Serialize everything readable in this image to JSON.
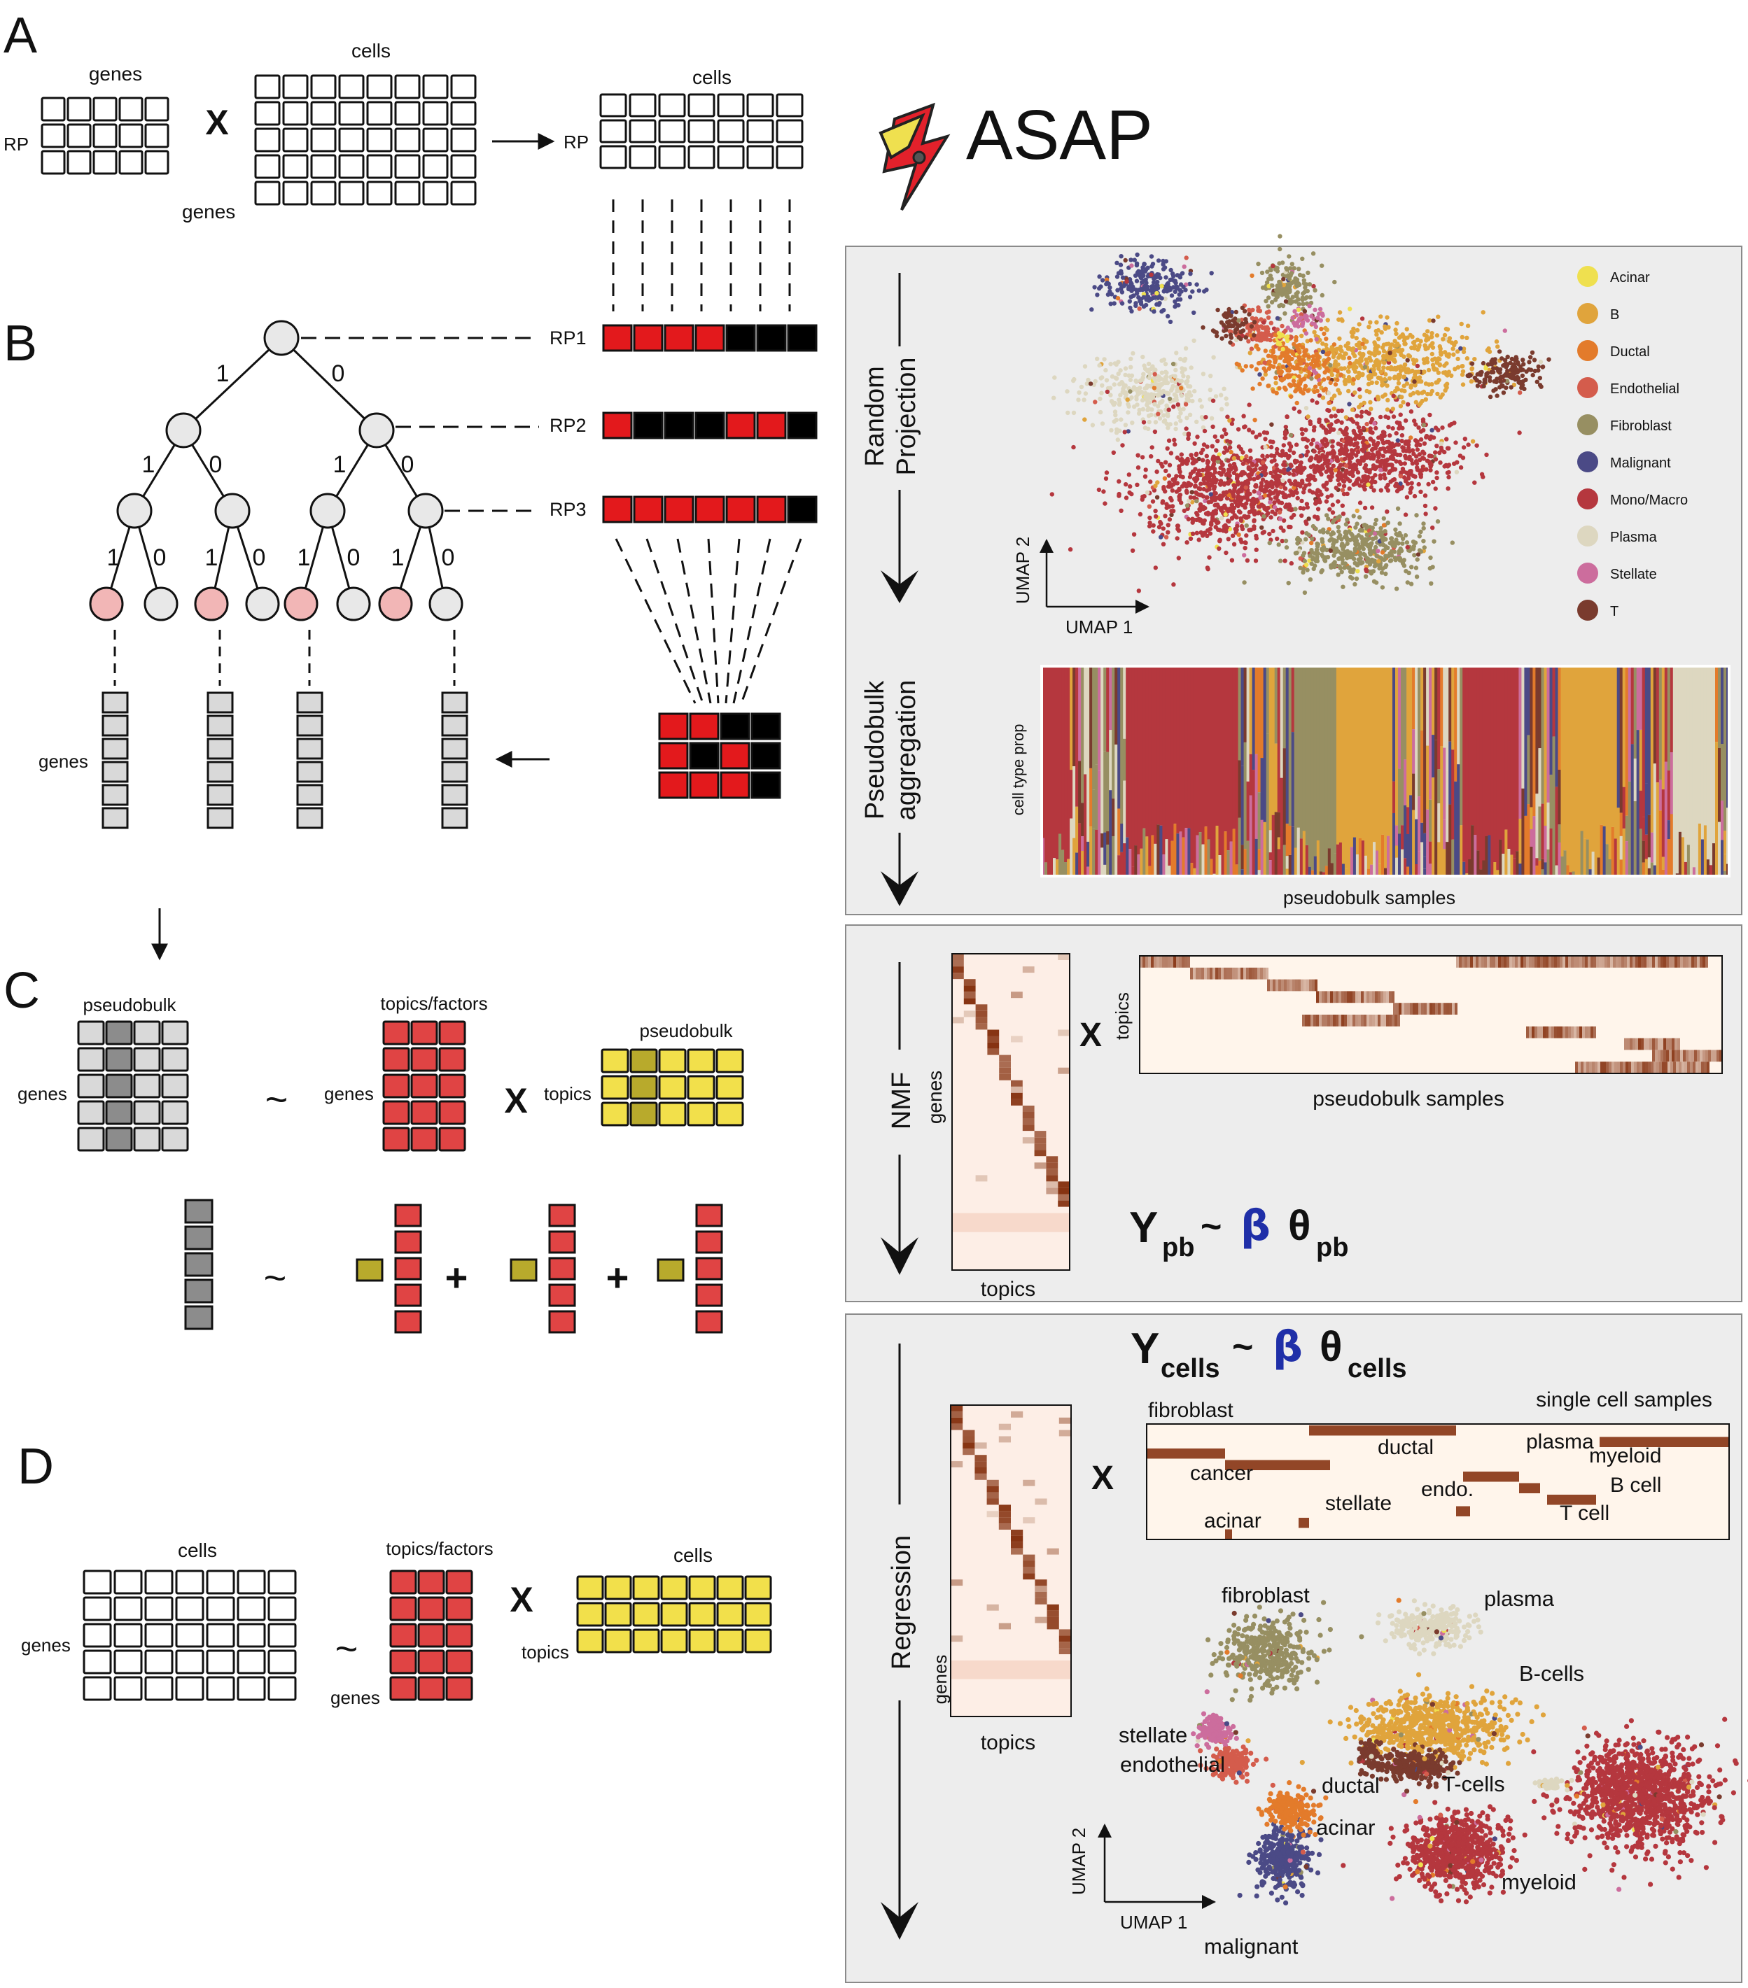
{
  "brand": {
    "name": "ASAP"
  },
  "panel_letters": [
    "A",
    "B",
    "C",
    "D"
  ],
  "panel_a": {
    "genes_top": "genes",
    "rp_left": "RP",
    "times": "X",
    "cells_top": "cells",
    "genes_bottom": "genes",
    "cells_result": "cells",
    "rp_result": "RP"
  },
  "panel_b": {
    "rp_labels": [
      "RP1",
      "RP2",
      "RP3"
    ],
    "branch_labels": [
      "1",
      "0"
    ],
    "genes_label": "genes",
    "rp_patterns": [
      [
        "red",
        "red",
        "red",
        "red",
        "black",
        "black",
        "black"
      ],
      [
        "red",
        "black",
        "black",
        "black",
        "red",
        "red",
        "black"
      ],
      [
        "red",
        "red",
        "red",
        "red",
        "red",
        "red",
        "black"
      ]
    ],
    "small_grid": [
      [
        "red",
        "red",
        "black",
        "black"
      ],
      [
        "red",
        "black",
        "red",
        "black"
      ],
      [
        "red",
        "red",
        "red",
        "black"
      ]
    ]
  },
  "panel_c": {
    "pseudobulk": "pseudobulk",
    "topics_factors": "topics/factors",
    "genes1": "genes",
    "genes2": "genes",
    "tilde": "~",
    "times": "X",
    "pseudobulk2": "pseudobulk",
    "topics": "topics",
    "plus": "+"
  },
  "panel_d": {
    "cells": "cells",
    "topics_factors": "topics/factors",
    "cells2": "cells",
    "genes": "genes",
    "genes2": "genes",
    "tilde": "~",
    "times": "X",
    "topics": "topics"
  },
  "right_top": {
    "step_random_1": "Random",
    "step_random_2": "Projection",
    "step_pseudo_1": "Pseudobulk",
    "step_pseudo_2": "aggregation",
    "umap1": "UMAP 1",
    "umap2": "UMAP 2",
    "legend": [
      {
        "name": "Acinar",
        "color": "#EFE04F"
      },
      {
        "name": "B",
        "color": "#E0A43C"
      },
      {
        "name": "Ductal",
        "color": "#E37B2B"
      },
      {
        "name": "Endothelial",
        "color": "#D45C4C"
      },
      {
        "name": "Fibroblast",
        "color": "#978F62"
      },
      {
        "name": "Malignant",
        "color": "#4B4A86"
      },
      {
        "name": "Mono/Macro",
        "color": "#B5373E"
      },
      {
        "name": "Plasma",
        "color": "#DDD7C0"
      },
      {
        "name": "Stellate",
        "color": "#CC6D9D"
      },
      {
        "name": "T",
        "color": "#7A3B2E"
      }
    ],
    "celltype_prop": "cell type  prop",
    "pseudobulk_samples": "pseudobulk samples"
  },
  "right_mid": {
    "step": "NMF",
    "genes": "genes",
    "topics": "topics",
    "times": "X",
    "topics_rot": "topics",
    "pseudobulk_samples": "pseudobulk samples",
    "eq_y": "Y",
    "eq_y_sub": "pb",
    "eq_tilde": "~",
    "eq_beta": "β",
    "eq_theta": "θ",
    "eq_theta_sub": "pb"
  },
  "right_bot": {
    "step": "Regression",
    "eq_y": "Y",
    "eq_y_sub": "cells",
    "eq_tilde": "~",
    "eq_beta": "β",
    "eq_theta": "θ",
    "eq_theta_sub": "cells",
    "genes": "genes",
    "topics": "topics",
    "times": "X",
    "sc_labels": [
      "fibroblast",
      "single cell samples",
      "ductal",
      "plasma",
      "myeloid",
      "cancer",
      "endo.",
      "B cell",
      "stellate",
      "acinar",
      "T cell"
    ],
    "umap_labels": [
      "fibroblast",
      "plasma",
      "B-cells",
      "stellate",
      "endothelial",
      "ductal",
      "T-cells",
      "acinar",
      "myeloid",
      "malignant"
    ],
    "umap1": "UMAP 1",
    "umap2": "UMAP 2"
  }
}
